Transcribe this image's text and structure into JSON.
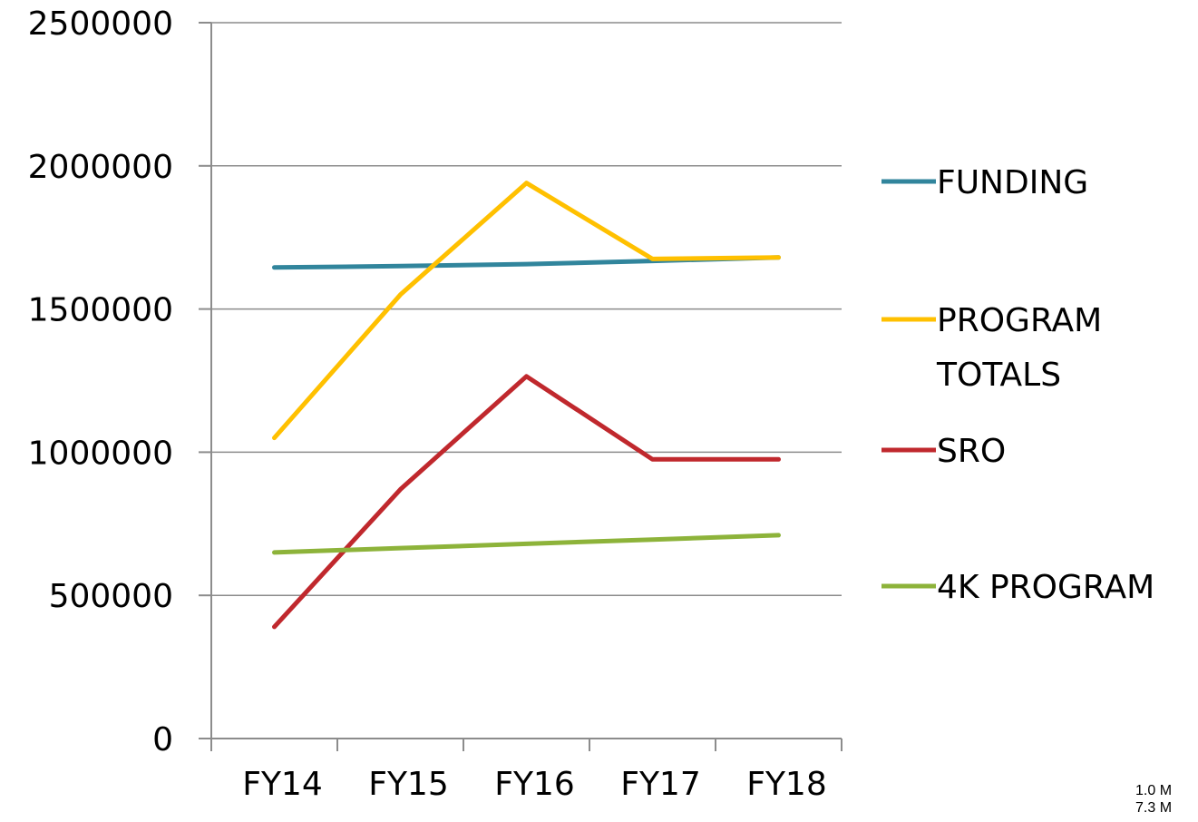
{
  "chart_data": {
    "type": "line",
    "categories": [
      "FY14",
      "FY15",
      "FY16",
      "FY17",
      "FY18"
    ],
    "ylim": [
      0,
      2500000
    ],
    "yticks": [
      0,
      500000,
      1000000,
      1500000,
      2000000,
      2500000
    ],
    "ytick_labels": [
      "0",
      "500000",
      "1000000",
      "1500000",
      "2000000",
      "2500000"
    ],
    "grid": true,
    "legend_position": "right",
    "series": [
      {
        "name": "FUNDING",
        "color": "#31859C",
        "values": [
          1645000,
          1650000,
          1657000,
          1668000,
          1680000
        ]
      },
      {
        "name_lines": [
          "PROGRAM",
          "TOTALS"
        ],
        "color": "#FFC000",
        "values": [
          1050000,
          1550000,
          1940000,
          1675000,
          1680000
        ]
      },
      {
        "name": "SRO",
        "color": "#C0282D",
        "values": [
          390000,
          870000,
          1265000,
          975000,
          975000
        ]
      },
      {
        "name": "4K PROGRAM",
        "color": "#8DB33A",
        "values": [
          650000,
          665000,
          680000,
          695000,
          710000
        ]
      }
    ]
  },
  "notes": [
    "1.0 M",
    "7.3 M"
  ]
}
